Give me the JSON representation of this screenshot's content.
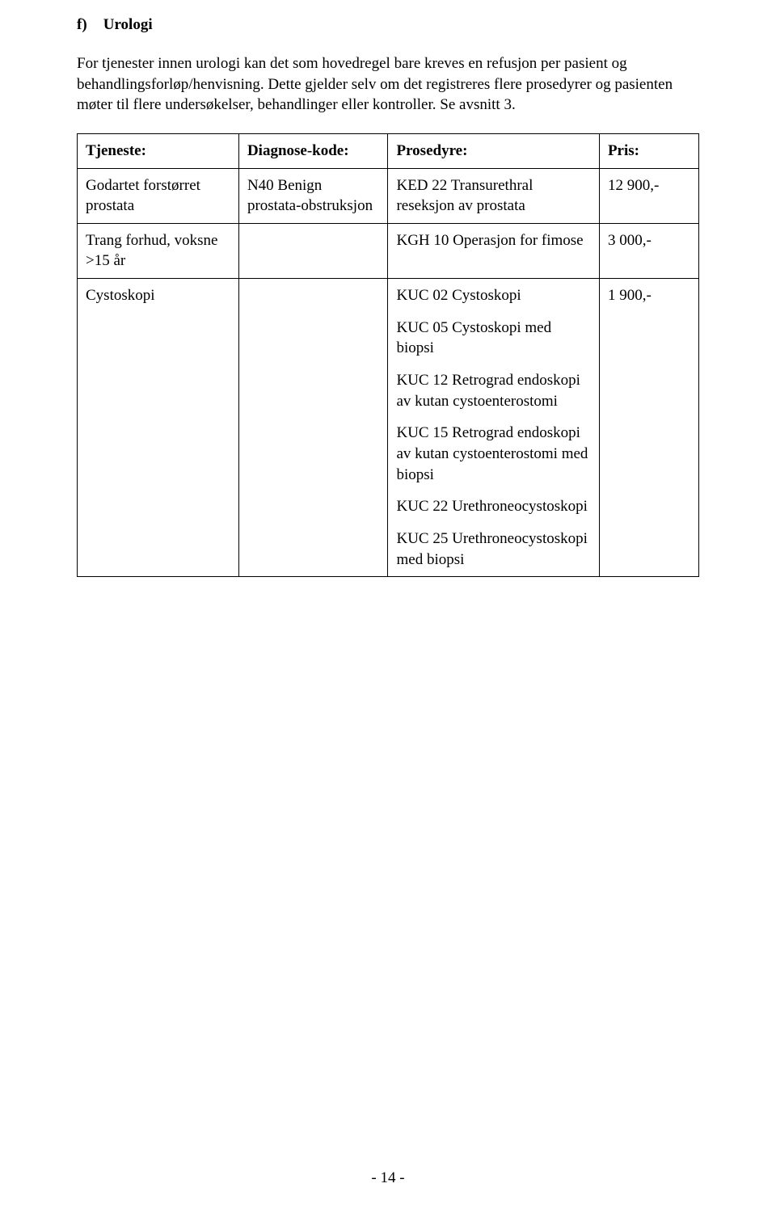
{
  "section": {
    "letter": "f)",
    "title": "Urologi"
  },
  "paragraph": "For tjenester innen urologi kan det som hovedregel bare kreves en refusjon per pasient og behandlingsforløp/henvisning. Dette gjelder selv om det registreres flere prosedyrer og pasienten møter til flere undersøkelser, behandlinger eller kontroller. Se avsnitt 3.",
  "table": {
    "headers": {
      "tjeneste": "Tjeneste:",
      "diagnose": "Diagnose-kode:",
      "prosedyre": "Prosedyre:",
      "pris": "Pris:"
    },
    "rows": [
      {
        "tjeneste": "Godartet forstørret prostata",
        "diagnose": "N40 Benign prostata-obstruksjon",
        "prosedyrer": [
          "KED 22 Transurethral reseksjon av prostata"
        ],
        "pris": "12 900,-"
      },
      {
        "tjeneste": "Trang forhud, voksne >15 år",
        "diagnose": "",
        "prosedyrer": [
          "KGH 10 Operasjon for fimose"
        ],
        "pris": "3 000,-"
      },
      {
        "tjeneste": "Cystoskopi",
        "diagnose": "",
        "prosedyrer": [
          "KUC 02 Cystoskopi",
          "KUC 05 Cystoskopi med biopsi",
          "KUC 12 Retrograd endoskopi av kutan cystoenterostomi",
          "KUC 15 Retrograd endoskopi av kutan cystoenterostomi med biopsi",
          "KUC 22 Urethroneocystoskopi",
          "KUC 25 Urethroneocystoskopi med biopsi"
        ],
        "pris": "1 900,-"
      }
    ]
  },
  "pageNumber": "- 14 -"
}
